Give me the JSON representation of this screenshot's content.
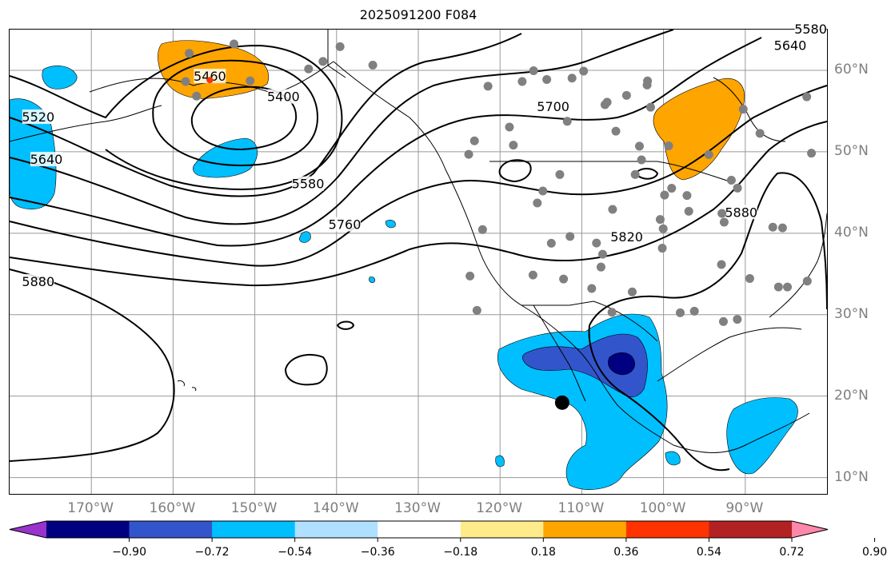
{
  "title": "2025091200 F084",
  "map": {
    "projection": "PlateCarree",
    "extent": {
      "lon_min": -180,
      "lon_max": -80,
      "lat_min": 8,
      "lat_max": 65
    },
    "grid_color": "#999999",
    "longitude_labels": [
      {
        "lon": -170,
        "text": "170°W"
      },
      {
        "lon": -160,
        "text": "160°W"
      },
      {
        "lon": -150,
        "text": "150°W"
      },
      {
        "lon": -140,
        "text": "140°W"
      },
      {
        "lon": -130,
        "text": "130°W"
      },
      {
        "lon": -120,
        "text": "120°W"
      },
      {
        "lon": -110,
        "text": "110°W"
      },
      {
        "lon": -100,
        "text": "100°W"
      },
      {
        "lon": -90,
        "text": "90°W"
      }
    ],
    "latitude_labels": [
      {
        "lat": 60,
        "text": "60°N"
      },
      {
        "lat": 50,
        "text": "50°N"
      },
      {
        "lat": 40,
        "text": "40°N"
      },
      {
        "lat": 30,
        "text": "30°N"
      },
      {
        "lat": 20,
        "text": "20°N"
      },
      {
        "lat": 10,
        "text": "10°N"
      }
    ],
    "contour_labels": [
      {
        "text": "5460",
        "lon": -155.5,
        "lat": 59.2
      },
      {
        "text": "5400",
        "lon": -146.5,
        "lat": 56.7
      },
      {
        "text": "5520",
        "lon": -176.5,
        "lat": 54.2
      },
      {
        "text": "5640",
        "lon": -175.5,
        "lat": 49.0
      },
      {
        "text": "5580",
        "lon": -143.5,
        "lat": 46.0
      },
      {
        "text": "5760",
        "lon": -139.0,
        "lat": 41.0
      },
      {
        "text": "5880",
        "lon": -176.5,
        "lat": 34.0
      },
      {
        "text": "5700",
        "lon": -113.5,
        "lat": 55.5
      },
      {
        "text": "5820",
        "lon": -104.5,
        "lat": 39.5
      },
      {
        "text": "5880",
        "lon": -90.5,
        "lat": 42.5
      },
      {
        "text": "5640",
        "lon": -84.5,
        "lat": 63.0
      },
      {
        "text": "5580",
        "lon": -82.0,
        "lat": 65.0
      }
    ],
    "highlight_points": [
      {
        "name": "red-point",
        "lon": -155.5,
        "lat": 58.8,
        "color": "#ff3300"
      },
      {
        "name": "black-point",
        "lon": -112.4,
        "lat": 19.2,
        "color": "#000000"
      }
    ]
  },
  "colorbar": {
    "colors": [
      "#9933cc",
      "#000080",
      "#3355cc",
      "#00bfff",
      "#b0e0ff",
      "#ffffff",
      "#ffeb8a",
      "#ffa500",
      "#ff3300",
      "#b22222",
      "#ff88aa"
    ],
    "ticks": [
      "−0.90",
      "−0.72",
      "−0.54",
      "−0.36",
      "−0.18",
      "0.18",
      "0.36",
      "0.54",
      "0.72",
      "0.90"
    ]
  }
}
